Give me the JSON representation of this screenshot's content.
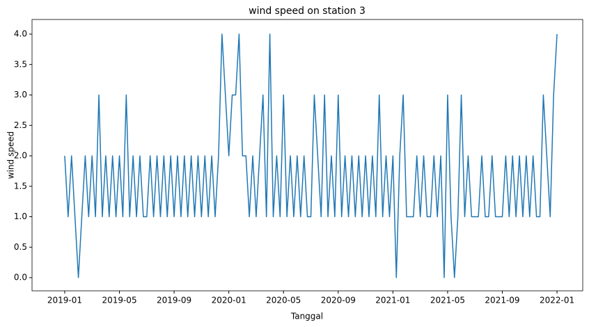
{
  "chart_data": {
    "type": "line",
    "title": "wind speed on station 3",
    "x_label": "Tanggal",
    "y_label": "wind speed",
    "color": "#1f77b4",
    "x": [
      0,
      0.25,
      0.5,
      0.75,
      1,
      1.25,
      1.5,
      1.75,
      2,
      2.25,
      2.5,
      2.75,
      3,
      3.25,
      3.5,
      3.75,
      4,
      4.25,
      4.5,
      4.75,
      5,
      5.25,
      5.5,
      5.75,
      6,
      6.25,
      6.5,
      6.75,
      7,
      7.25,
      7.5,
      7.75,
      8,
      8.25,
      8.5,
      8.75,
      9,
      9.25,
      9.5,
      9.75,
      10,
      10.25,
      10.5,
      10.75,
      11,
      11.25,
      11.5,
      11.75,
      12,
      12.25,
      12.5,
      12.75,
      13,
      13.25,
      13.5,
      13.75,
      14,
      14.25,
      14.5,
      14.75,
      15,
      15.25,
      15.5,
      15.75,
      16,
      16.25,
      16.5,
      16.75,
      17,
      17.25,
      17.5,
      17.75,
      18,
      18.25,
      18.5,
      18.75,
      19,
      19.25,
      19.5,
      19.75,
      20,
      20.25,
      20.5,
      20.75,
      21,
      21.25,
      21.5,
      21.75,
      22,
      22.25,
      22.5,
      22.75,
      23,
      23.25,
      23.5,
      23.75,
      24,
      24.25,
      24.5,
      24.75,
      25,
      25.25,
      25.5,
      25.75,
      26,
      26.25,
      26.5,
      26.75,
      27,
      27.25,
      27.5,
      27.75,
      28,
      28.25,
      28.5,
      28.75,
      29,
      29.25,
      29.5,
      29.75,
      30,
      30.25,
      30.5,
      30.75,
      31,
      31.25,
      31.5,
      31.75,
      32,
      32.25,
      32.5,
      32.75,
      33,
      33.25,
      33.5,
      33.75,
      34,
      34.25,
      34.5,
      34.75,
      35,
      35.25,
      35.5,
      35.75,
      36
    ],
    "values": [
      2,
      1,
      2,
      1,
      0,
      1,
      2,
      1,
      2,
      1,
      3,
      1,
      2,
      1,
      2,
      1,
      2,
      1,
      3,
      1,
      2,
      1,
      2,
      1,
      1,
      2,
      1,
      2,
      1,
      2,
      1,
      2,
      1,
      2,
      1,
      2,
      1,
      2,
      1,
      2,
      1,
      2,
      1,
      2,
      1,
      2,
      4,
      3,
      2,
      3,
      3,
      4,
      2,
      2,
      1,
      2,
      1,
      2,
      3,
      1,
      4,
      1,
      2,
      1,
      3,
      1,
      2,
      1,
      2,
      1,
      2,
      1,
      1,
      3,
      2,
      1,
      3,
      1,
      2,
      1,
      3,
      1,
      2,
      1,
      2,
      1,
      2,
      1,
      2,
      1,
      2,
      1,
      3,
      1,
      2,
      1,
      2,
      0,
      2,
      3,
      1,
      1,
      1,
      2,
      1,
      2,
      1,
      1,
      2,
      1,
      2,
      0,
      3,
      1,
      0,
      1,
      3,
      1,
      2,
      1,
      1,
      1,
      2,
      1,
      1,
      2,
      1,
      1,
      1,
      2,
      1,
      2,
      1,
      2,
      1,
      2,
      1,
      2,
      1,
      1,
      3,
      2,
      1,
      3,
      4
    ],
    "xlim": [
      -2.39,
      37.88
    ],
    "ylim": [
      -0.217,
      4.24
    ],
    "xticks": [
      {
        "value": 0,
        "label": "2019-01"
      },
      {
        "value": 4,
        "label": "2019-05"
      },
      {
        "value": 8,
        "label": "2019-09"
      },
      {
        "value": 12,
        "label": "2020-01"
      },
      {
        "value": 16,
        "label": "2020-05"
      },
      {
        "value": 20,
        "label": "2020-09"
      },
      {
        "value": 24,
        "label": "2021-01"
      },
      {
        "value": 28,
        "label": "2021-05"
      },
      {
        "value": 32,
        "label": "2021-09"
      },
      {
        "value": 36,
        "label": "2022-01"
      }
    ],
    "yticks": [
      {
        "value": 0,
        "label": "0.0"
      },
      {
        "value": 0.5,
        "label": "0.5"
      },
      {
        "value": 1,
        "label": "1.0"
      },
      {
        "value": 1.5,
        "label": "1.5"
      },
      {
        "value": 2,
        "label": "2.0"
      },
      {
        "value": 2.5,
        "label": "2.5"
      },
      {
        "value": 3,
        "label": "3.0"
      },
      {
        "value": 3.5,
        "label": "3.5"
      },
      {
        "value": 4,
        "label": "4.0"
      }
    ]
  }
}
